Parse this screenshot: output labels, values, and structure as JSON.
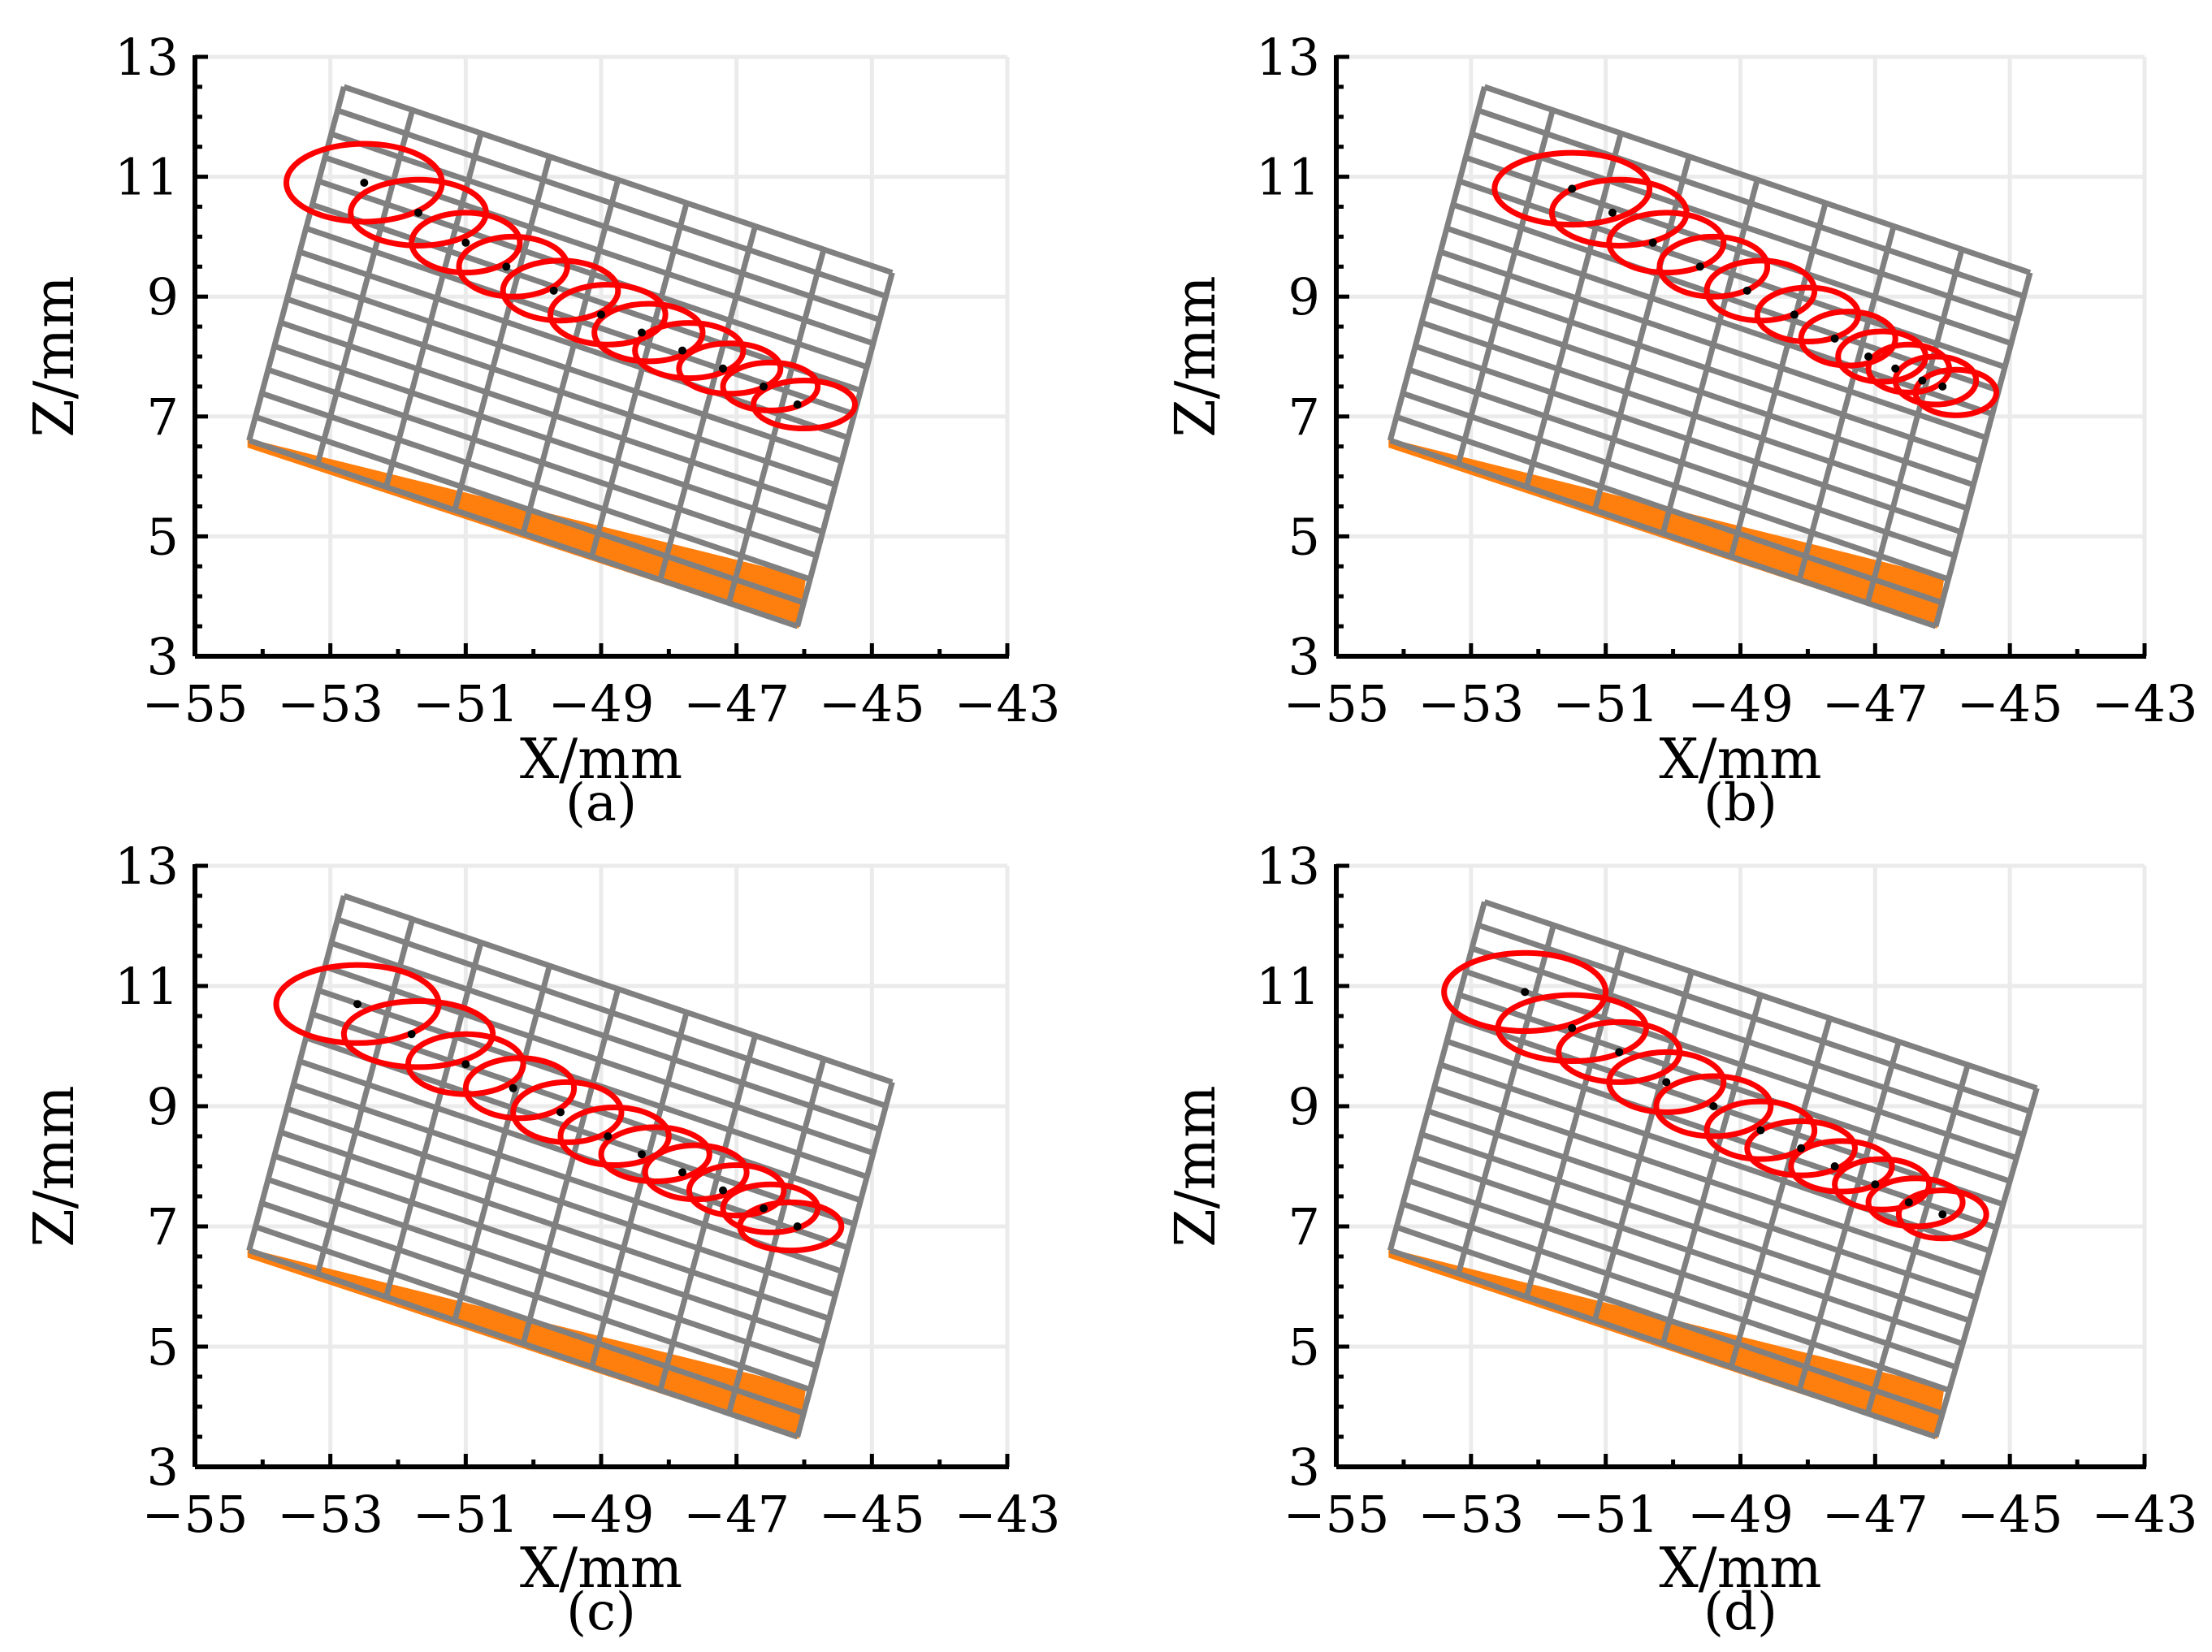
{
  "colors": {
    "grid": "#ebebeb",
    "mesh": "#808080",
    "ellipse": "#ff0000",
    "point": "#000000",
    "base": "#ff7f0e",
    "axis": "#000000"
  },
  "chart_data": [
    {
      "type": "scatter",
      "panel": "a",
      "caption": "(a)",
      "xlabel": "X/mm",
      "ylabel": "Z/mm",
      "xlim": [
        -55,
        -43
      ],
      "ylim": [
        3,
        13
      ],
      "xticks": [
        -55,
        -53,
        -51,
        -49,
        -47,
        -45,
        -43
      ],
      "yticks": [
        3,
        5,
        7,
        9,
        11,
        13
      ],
      "xtick_labels": [
        "−55",
        "−53",
        "−51",
        "−49",
        "−47",
        "−45",
        "−43"
      ],
      "ytick_labels": [
        "3",
        "5",
        "7",
        "9",
        "11",
        "13"
      ],
      "grid": true,
      "mesh": {
        "corners": [
          [
            -54.2,
            6.6
          ],
          [
            -52.8,
            12.5
          ],
          [
            -44.7,
            9.4
          ],
          [
            -46.1,
            3.5
          ]
        ],
        "columns": 8,
        "rows": 15
      },
      "base": {
        "polygon": [
          [
            -54.2,
            6.6
          ],
          [
            -54.2,
            6.5
          ],
          [
            -46.1,
            3.5
          ],
          [
            -46.0,
            4.3
          ]
        ]
      },
      "points": {
        "x": [
          -52.5,
          -51.7,
          -51.0,
          -50.4,
          -49.7,
          -49.0,
          -48.4,
          -47.8,
          -47.2,
          -46.6,
          -46.1
        ],
        "y": [
          10.9,
          10.4,
          9.9,
          9.5,
          9.1,
          8.7,
          8.4,
          8.1,
          7.8,
          7.5,
          7.2
        ]
      },
      "ellipses": {
        "cx": [
          -52.5,
          -51.7,
          -51.0,
          -50.3,
          -49.6,
          -48.9,
          -48.3,
          -47.7,
          -47.1,
          -46.5,
          -46.0
        ],
        "cy": [
          10.9,
          10.4,
          9.9,
          9.5,
          9.1,
          8.7,
          8.4,
          8.1,
          7.8,
          7.5,
          7.2
        ],
        "rx": [
          1.15,
          1.0,
          0.8,
          0.8,
          0.85,
          0.85,
          0.8,
          0.8,
          0.75,
          0.7,
          0.75
        ],
        "ry": [
          0.65,
          0.55,
          0.5,
          0.5,
          0.5,
          0.5,
          0.48,
          0.46,
          0.42,
          0.4,
          0.4
        ]
      }
    },
    {
      "type": "scatter",
      "panel": "b",
      "caption": "(b)",
      "xlabel": "X/mm",
      "ylabel": "Z/mm",
      "xlim": [
        -55,
        -43
      ],
      "ylim": [
        3,
        13
      ],
      "xticks": [
        -55,
        -53,
        -51,
        -49,
        -47,
        -45,
        -43
      ],
      "yticks": [
        3,
        5,
        7,
        9,
        11,
        13
      ],
      "xtick_labels": [
        "−55",
        "−53",
        "−51",
        "−49",
        "−47",
        "−45",
        "−43"
      ],
      "ytick_labels": [
        "3",
        "5",
        "7",
        "9",
        "11",
        "13"
      ],
      "grid": true,
      "mesh": {
        "corners": [
          [
            -54.2,
            6.6
          ],
          [
            -52.8,
            12.5
          ],
          [
            -44.7,
            9.4
          ],
          [
            -46.1,
            3.5
          ]
        ],
        "columns": 8,
        "rows": 15
      },
      "base": {
        "polygon": [
          [
            -54.2,
            6.6
          ],
          [
            -54.2,
            6.5
          ],
          [
            -46.1,
            3.5
          ],
          [
            -46.0,
            4.3
          ]
        ]
      },
      "points": {
        "x": [
          -51.5,
          -50.9,
          -50.3,
          -49.6,
          -48.9,
          -48.2,
          -47.6,
          -47.1,
          -46.7,
          -46.3,
          -46.0
        ],
        "y": [
          10.8,
          10.4,
          9.9,
          9.5,
          9.1,
          8.7,
          8.3,
          8.0,
          7.8,
          7.6,
          7.5
        ]
      },
      "ellipses": {
        "cx": [
          -51.5,
          -50.8,
          -50.1,
          -49.4,
          -48.7,
          -48.0,
          -47.4,
          -46.9,
          -46.5,
          -46.1,
          -45.8
        ],
        "cy": [
          10.8,
          10.4,
          9.9,
          9.5,
          9.1,
          8.7,
          8.3,
          8.0,
          7.8,
          7.6,
          7.4
        ],
        "rx": [
          1.15,
          1.0,
          0.85,
          0.8,
          0.8,
          0.75,
          0.7,
          0.65,
          0.6,
          0.6,
          0.6
        ],
        "ry": [
          0.6,
          0.55,
          0.5,
          0.5,
          0.5,
          0.45,
          0.45,
          0.42,
          0.4,
          0.4,
          0.38
        ]
      }
    },
    {
      "type": "scatter",
      "panel": "c",
      "caption": "(c)",
      "xlabel": "X/mm",
      "ylabel": "Z/mm",
      "xlim": [
        -55,
        -43
      ],
      "ylim": [
        3,
        13
      ],
      "xticks": [
        -55,
        -53,
        -51,
        -49,
        -47,
        -45,
        -43
      ],
      "yticks": [
        3,
        5,
        7,
        9,
        11,
        13
      ],
      "xtick_labels": [
        "−55",
        "−53",
        "−51",
        "−49",
        "−47",
        "−45",
        "−43"
      ],
      "ytick_labels": [
        "3",
        "5",
        "7",
        "9",
        "11",
        "13"
      ],
      "grid": true,
      "mesh": {
        "corners": [
          [
            -54.2,
            6.6
          ],
          [
            -52.8,
            12.5
          ],
          [
            -44.7,
            9.4
          ],
          [
            -46.1,
            3.5
          ]
        ],
        "columns": 8,
        "rows": 15
      },
      "base": {
        "polygon": [
          [
            -54.2,
            6.6
          ],
          [
            -54.2,
            6.5
          ],
          [
            -46.1,
            3.5
          ],
          [
            -46.0,
            4.3
          ]
        ]
      },
      "points": {
        "x": [
          -52.6,
          -51.8,
          -51.0,
          -50.3,
          -49.6,
          -48.9,
          -48.4,
          -47.8,
          -47.2,
          -46.6,
          -46.1
        ],
        "y": [
          10.7,
          10.2,
          9.7,
          9.3,
          8.9,
          8.5,
          8.2,
          7.9,
          7.6,
          7.3,
          7.0
        ]
      },
      "ellipses": {
        "cx": [
          -52.6,
          -51.7,
          -51.0,
          -50.2,
          -49.5,
          -48.8,
          -48.2,
          -47.6,
          -47.0,
          -46.5,
          -46.2
        ],
        "cy": [
          10.7,
          10.2,
          9.7,
          9.3,
          8.9,
          8.5,
          8.2,
          7.9,
          7.6,
          7.3,
          7.0
        ],
        "rx": [
          1.2,
          1.1,
          0.85,
          0.8,
          0.8,
          0.8,
          0.8,
          0.75,
          0.7,
          0.7,
          0.75
        ],
        "ry": [
          0.65,
          0.55,
          0.5,
          0.5,
          0.5,
          0.48,
          0.45,
          0.45,
          0.42,
          0.4,
          0.4
        ]
      }
    },
    {
      "type": "scatter",
      "panel": "d",
      "caption": "(d)",
      "xlabel": "X/mm",
      "ylabel": "Z/mm",
      "xlim": [
        -55,
        -43
      ],
      "ylim": [
        3,
        13
      ],
      "xticks": [
        -55,
        -53,
        -51,
        -49,
        -47,
        -45,
        -43
      ],
      "yticks": [
        3,
        5,
        7,
        9,
        11,
        13
      ],
      "xtick_labels": [
        "−55",
        "−53",
        "−51",
        "−49",
        "−47",
        "−45",
        "−43"
      ],
      "ytick_labels": [
        "3",
        "5",
        "7",
        "9",
        "11",
        "13"
      ],
      "grid": true,
      "mesh": {
        "corners": [
          [
            -54.2,
            6.6
          ],
          [
            -52.8,
            12.4
          ],
          [
            -44.6,
            9.3
          ],
          [
            -46.1,
            3.5
          ]
        ],
        "columns": 8,
        "rows": 15
      },
      "base": {
        "polygon": [
          [
            -54.2,
            6.6
          ],
          [
            -54.2,
            6.5
          ],
          [
            -46.1,
            3.5
          ],
          [
            -46.0,
            4.3
          ]
        ]
      },
      "points": {
        "x": [
          -52.2,
          -51.5,
          -50.8,
          -50.1,
          -49.4,
          -48.7,
          -48.1,
          -47.6,
          -47.0,
          -46.5,
          -46.0
        ],
        "y": [
          10.9,
          10.3,
          9.9,
          9.4,
          9.0,
          8.6,
          8.3,
          8.0,
          7.7,
          7.4,
          7.2
        ]
      },
      "ellipses": {
        "cx": [
          -52.2,
          -51.5,
          -50.8,
          -50.1,
          -49.4,
          -48.7,
          -48.1,
          -47.5,
          -46.9,
          -46.4,
          -46.0
        ],
        "cy": [
          10.9,
          10.3,
          9.9,
          9.4,
          9.0,
          8.6,
          8.3,
          8.0,
          7.7,
          7.4,
          7.2
        ],
        "rx": [
          1.2,
          1.1,
          0.9,
          0.85,
          0.85,
          0.8,
          0.8,
          0.75,
          0.7,
          0.7,
          0.65
        ],
        "ry": [
          0.65,
          0.55,
          0.5,
          0.5,
          0.5,
          0.48,
          0.45,
          0.42,
          0.42,
          0.4,
          0.4
        ]
      }
    }
  ]
}
